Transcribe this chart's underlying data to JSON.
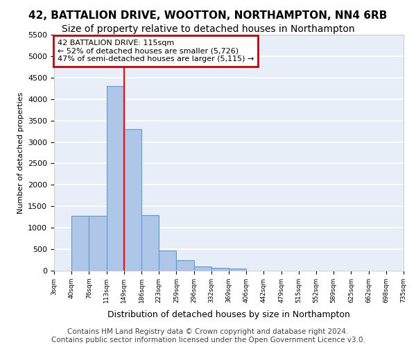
{
  "title1": "42, BATTALION DRIVE, WOOTTON, NORTHAMPTON, NN4 6RB",
  "title2": "Size of property relative to detached houses in Northampton",
  "xlabel": "Distribution of detached houses by size in Northampton",
  "ylabel": "Number of detached properties",
  "footnote": "Contains HM Land Registry data © Crown copyright and database right 2024.\nContains public sector information licensed under the Open Government Licence v3.0.",
  "bin_labels": [
    "3sqm",
    "40sqm",
    "76sqm",
    "113sqm",
    "149sqm",
    "186sqm",
    "223sqm",
    "259sqm",
    "296sqm",
    "332sqm",
    "369sqm",
    "406sqm",
    "442sqm",
    "479sqm",
    "515sqm",
    "552sqm",
    "589sqm",
    "625sqm",
    "662sqm",
    "698sqm",
    "735sqm"
  ],
  "bar_values": [
    0,
    1270,
    1270,
    4300,
    3300,
    1300,
    470,
    240,
    100,
    60,
    50,
    0,
    0,
    0,
    0,
    0,
    0,
    0,
    0,
    0
  ],
  "bar_color": "#aec6e8",
  "bar_edge_color": "#5b9bd5",
  "annotation_text": "42 BATTALION DRIVE: 115sqm\n← 52% of detached houses are smaller (5,726)\n47% of semi-detached houses are larger (5,115) →",
  "annotation_box_color": "#ffffff",
  "annotation_box_edge": "#cc0000",
  "ylim": [
    0,
    5500
  ],
  "yticks": [
    0,
    500,
    1000,
    1500,
    2000,
    2500,
    3000,
    3500,
    4000,
    4500,
    5000,
    5500
  ],
  "background_color": "#e8eef8",
  "grid_color": "#ffffff",
  "title1_fontsize": 11,
  "title2_fontsize": 10,
  "footnote_fontsize": 7.5,
  "red_line_x": 3.5
}
